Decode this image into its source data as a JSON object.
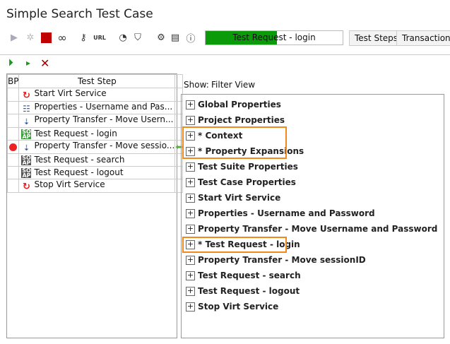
{
  "title": "Simple Search Test Case",
  "toolbar": {
    "icons": [
      "run-icon",
      "debug-icon",
      "stop-icon",
      "loop-icon",
      "key-icon",
      "url-icon",
      "gauge-icon",
      "shield-icon",
      "gear-icon",
      "document-icon",
      "info-icon"
    ],
    "url_label": "URL",
    "progress_text": "Test Request - login",
    "progress_percent": 52,
    "progress_color": "#0a9a0a",
    "tabs": [
      "Test Steps",
      "Transaction"
    ]
  },
  "step_toolbar": {
    "icons": [
      "run-from-icon",
      "run-step-icon",
      "remove-icon"
    ]
  },
  "table": {
    "headers": [
      "BP",
      "Test Step"
    ],
    "rows": [
      {
        "name": "Start Virt Service",
        "icon": "virt-icon",
        "bp": false,
        "current": false
      },
      {
        "name": "Properties - Username and Pas...",
        "icon": "properties-icon",
        "bp": false,
        "current": false
      },
      {
        "name": "Property Transfer - Move Usern...",
        "icon": "transfer-icon",
        "bp": false,
        "current": false
      },
      {
        "name": "Test Request - login",
        "icon": "soap-green-icon",
        "bp": false,
        "current": false
      },
      {
        "name": "Property Transfer - Move sessio...",
        "icon": "transfer-icon",
        "bp": true,
        "current": true
      },
      {
        "name": "Test Request - search",
        "icon": "soap-icon",
        "bp": false,
        "current": false
      },
      {
        "name": "Test Request - logout",
        "icon": "soap-icon",
        "bp": false,
        "current": false
      },
      {
        "name": "Stop Virt Service",
        "icon": "virt-icon",
        "bp": false,
        "current": false
      }
    ]
  },
  "show": {
    "label": "Show:",
    "value": "Filter View"
  },
  "tree": [
    "Global Properties",
    "Project Properties",
    "* Context",
    "* Property Expansions",
    "Test Suite Properties",
    "Test Case Properties",
    "Start Virt Service",
    "Properties - Username and Password",
    "Property Transfer - Move Username and Password",
    "* Test Request - login",
    "Property Transfer - Move sessionID",
    "Test Request - search",
    "Test Request - logout",
    "Stop Virt Service"
  ],
  "highlight_color": "#f08a1c"
}
